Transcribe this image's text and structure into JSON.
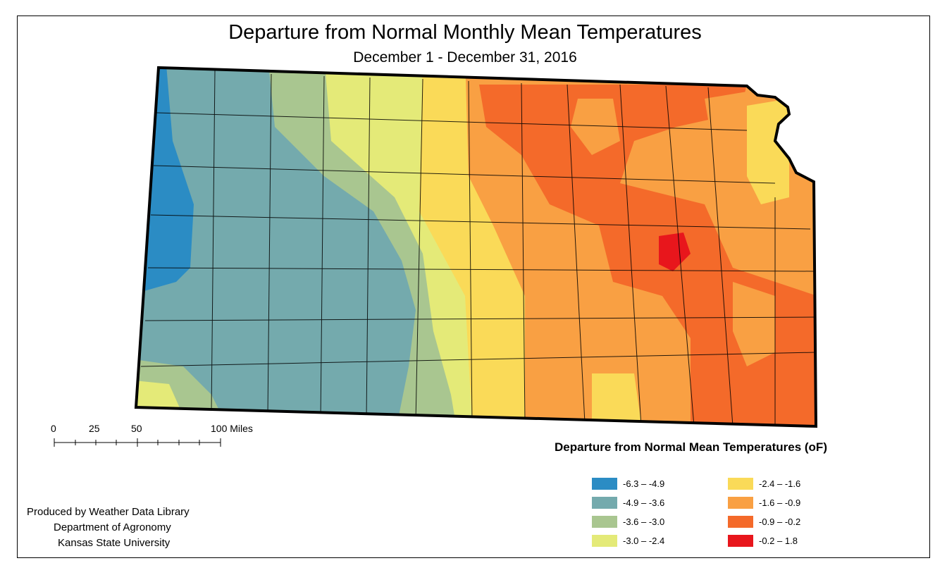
{
  "title": "Departure from Normal Monthly Mean Temperatures",
  "subtitle": "December 1 - December 31, 2016",
  "scale_bar": {
    "labels": [
      "0",
      "25",
      "50",
      "100 Miles"
    ]
  },
  "legend": {
    "title": "Departure from Normal Mean Temperatures (oF)",
    "items": [
      {
        "label": "-6.3 – -4.9",
        "color": "#2b8cc4"
      },
      {
        "label": "-4.9 – -3.6",
        "color": "#74aaad"
      },
      {
        "label": "-3.6 – -3.0",
        "color": "#a9c690"
      },
      {
        "label": "-3.0 – -2.4",
        "color": "#e4ea78"
      },
      {
        "label": "-2.4 – -1.6",
        "color": "#fada58"
      },
      {
        "label": "-1.6 – -0.9",
        "color": "#f9a043"
      },
      {
        "label": "-0.9 – -0.2",
        "color": "#f46a2a"
      },
      {
        "label": "-0.2 – 1.8",
        "color": "#e8161c"
      }
    ]
  },
  "credits": {
    "line1": "Produced by Weather Data Library",
    "line2": "Department of Agronomy",
    "line3": "Kansas State University"
  }
}
